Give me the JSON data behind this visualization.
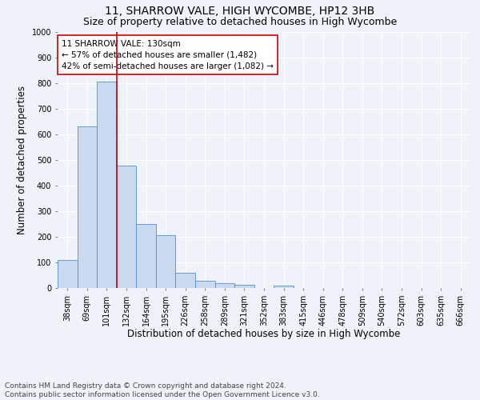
{
  "title": "11, SHARROW VALE, HIGH WYCOMBE, HP12 3HB",
  "subtitle": "Size of property relative to detached houses in High Wycombe",
  "xlabel": "Distribution of detached houses by size in High Wycombe",
  "ylabel": "Number of detached properties",
  "bar_color": "#c9d9f0",
  "bar_edge_color": "#5b8ccc",
  "categories": [
    "38sqm",
    "69sqm",
    "101sqm",
    "132sqm",
    "164sqm",
    "195sqm",
    "226sqm",
    "258sqm",
    "289sqm",
    "321sqm",
    "352sqm",
    "383sqm",
    "415sqm",
    "446sqm",
    "478sqm",
    "509sqm",
    "540sqm",
    "572sqm",
    "603sqm",
    "635sqm",
    "666sqm"
  ],
  "values": [
    110,
    632,
    805,
    478,
    250,
    206,
    60,
    27,
    20,
    12,
    0,
    10,
    0,
    0,
    0,
    0,
    0,
    0,
    0,
    0,
    0
  ],
  "vline_x_idx": 2,
  "vline_color": "#cc0000",
  "annotation_text": "11 SHARROW VALE: 130sqm\n← 57% of detached houses are smaller (1,482)\n42% of semi-detached houses are larger (1,082) →",
  "annotation_box_color": "#ffffff",
  "annotation_box_edge": "#cc0000",
  "ylim": [
    0,
    1000
  ],
  "yticks": [
    0,
    100,
    200,
    300,
    400,
    500,
    600,
    700,
    800,
    900,
    1000
  ],
  "footnote": "Contains HM Land Registry data © Crown copyright and database right 2024.\nContains public sector information licensed under the Open Government Licence v3.0.",
  "background_color": "#eef2fa",
  "grid_color": "#ffffff",
  "title_fontsize": 10,
  "subtitle_fontsize": 9,
  "axis_label_fontsize": 8.5,
  "tick_fontsize": 7,
  "annotation_fontsize": 7.5,
  "footnote_fontsize": 6.5
}
